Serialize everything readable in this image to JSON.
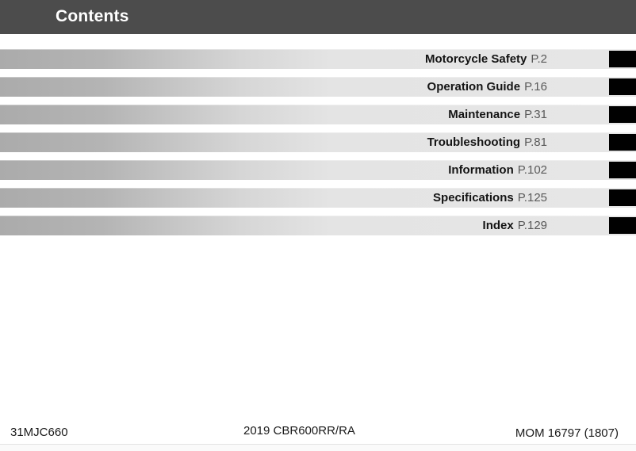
{
  "header": {
    "title": "Contents"
  },
  "toc": {
    "items": [
      {
        "label": "Motorcycle Safety",
        "page": "P.2"
      },
      {
        "label": "Operation Guide",
        "page": "P.16"
      },
      {
        "label": "Maintenance",
        "page": "P.31"
      },
      {
        "label": "Troubleshooting",
        "page": "P.81"
      },
      {
        "label": "Information",
        "page": "P.102"
      },
      {
        "label": "Specifications",
        "page": "P.125"
      },
      {
        "label": "Index",
        "page": "P.129"
      }
    ]
  },
  "footer": {
    "left": "31MJC660",
    "center": "2019 CBR600RR/RA",
    "right": "MOM 16797 (1807)"
  },
  "colors": {
    "header_bg": "#4c4c4c",
    "bar_gradient_dark": "#ababab",
    "bar_gradient_light": "#e6e6e6",
    "chapter_tab": "#010101",
    "page_ref_text": "#595959"
  }
}
